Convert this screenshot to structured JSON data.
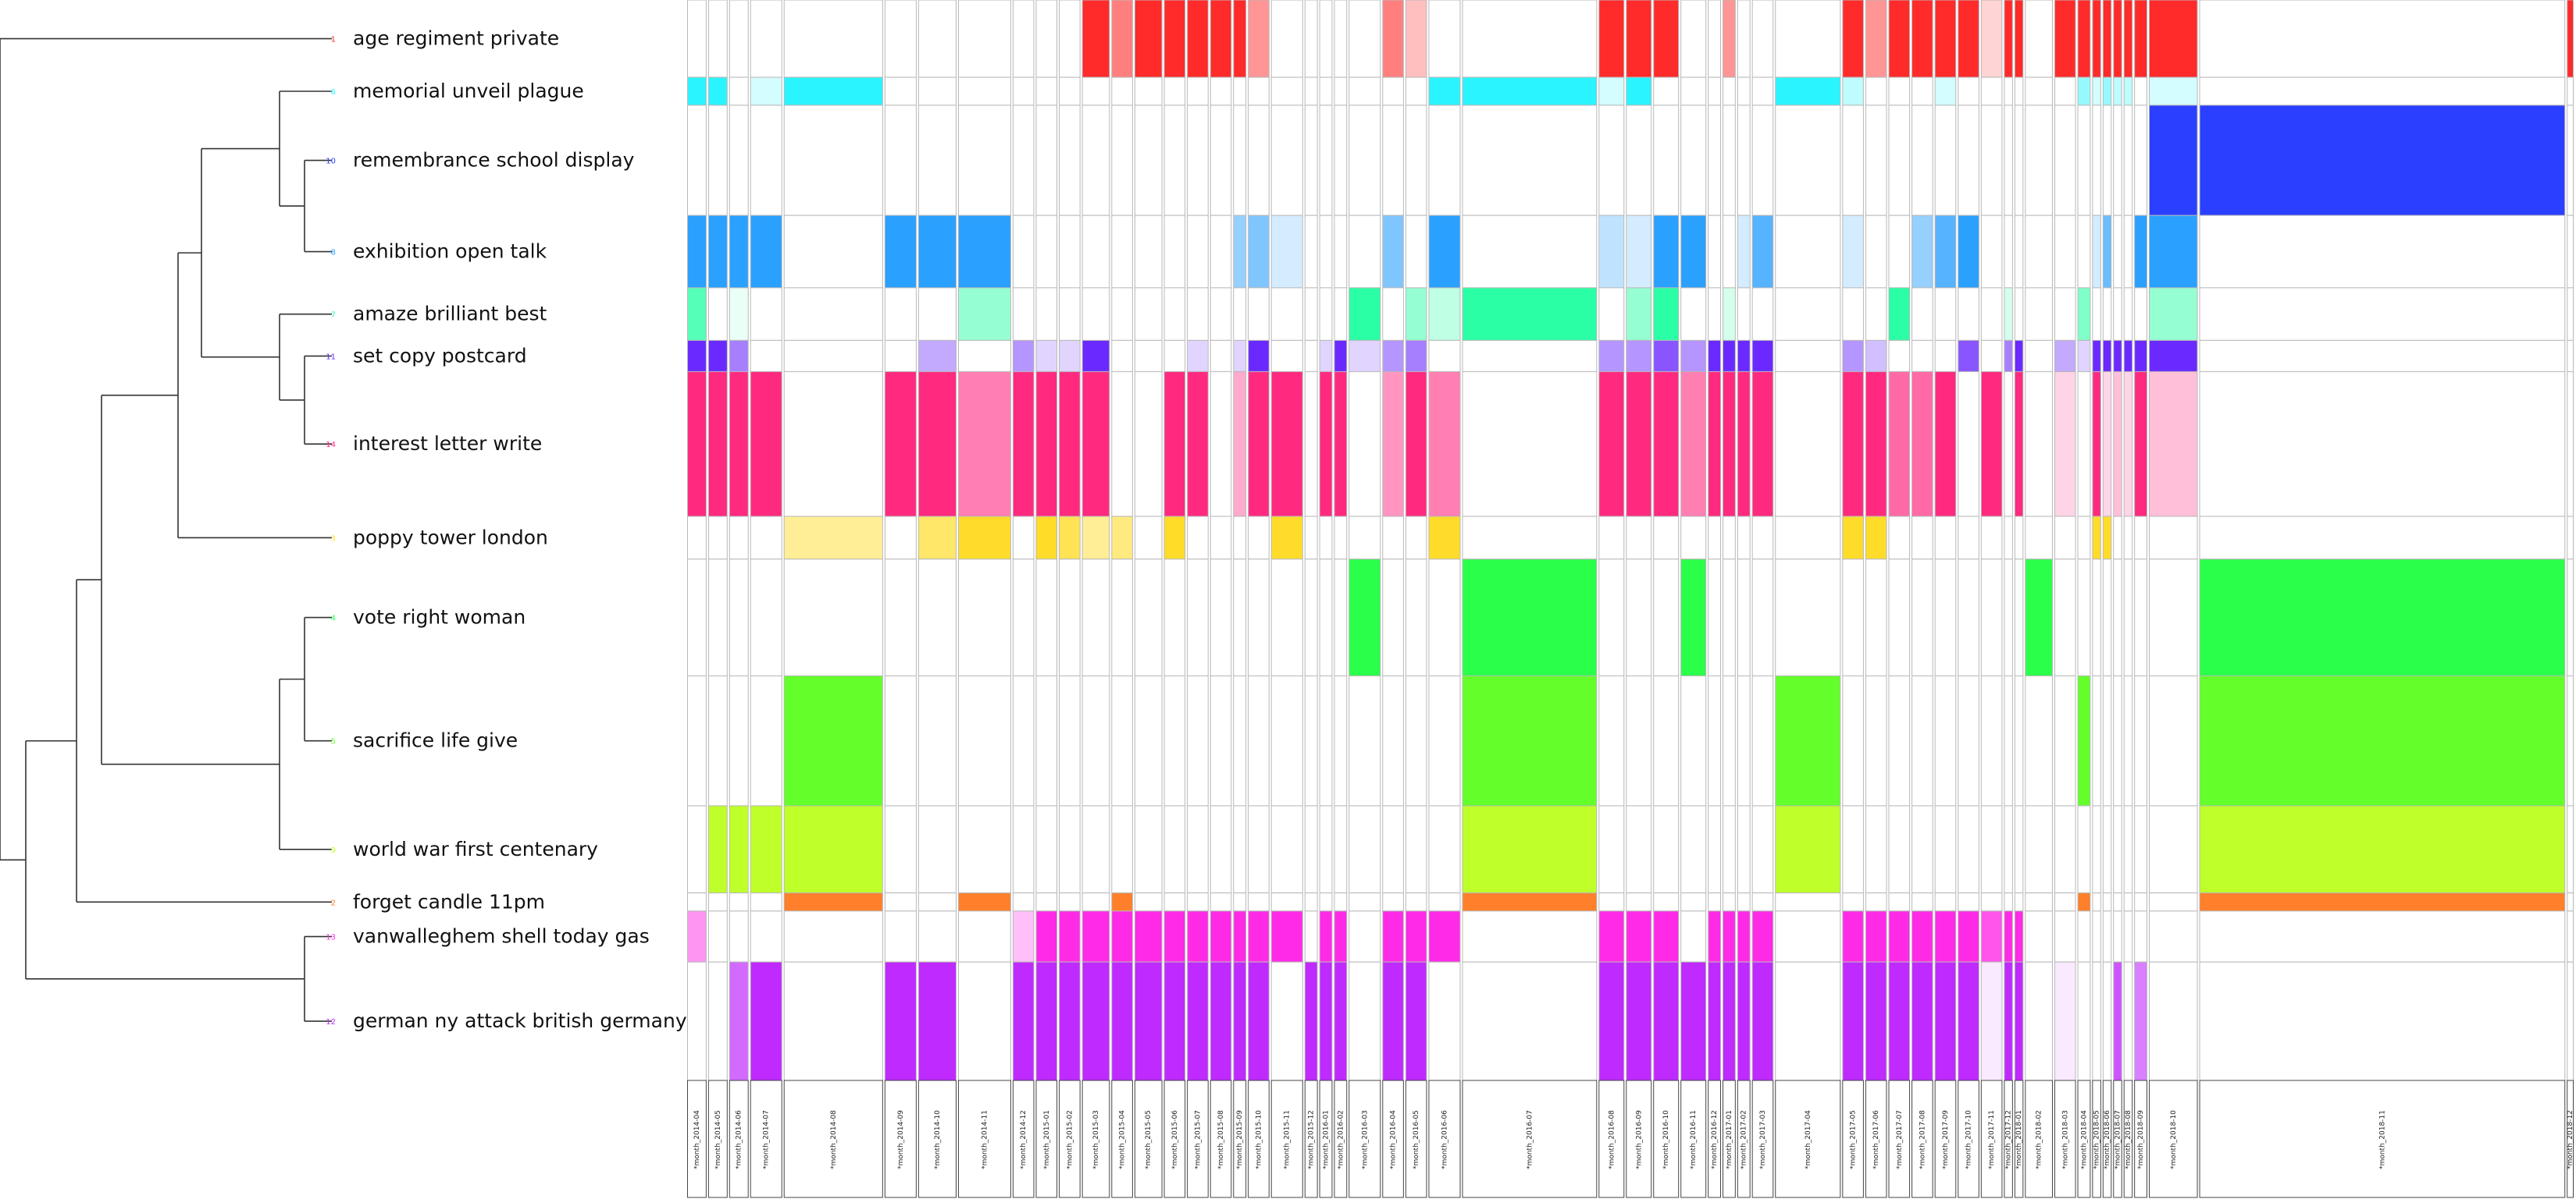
{
  "chart_data": {
    "type": "heatmap",
    "title": "",
    "rows": [
      {
        "id": "1",
        "label": "age regiment private",
        "color": "#ff2a2a"
      },
      {
        "id": "6",
        "label": "memorial unveil plague",
        "color": "#2af4ff"
      },
      {
        "id": "10",
        "label": "remembrance school display",
        "color": "#2a3fff"
      },
      {
        "id": "8",
        "label": "exhibition open talk",
        "color": "#2aa0ff"
      },
      {
        "id": "7",
        "label": "amaze brilliant best",
        "color": "#2affa5"
      },
      {
        "id": "11",
        "label": "set copy postcard",
        "color": "#6a2aff"
      },
      {
        "id": "14",
        "label": "interest letter write",
        "color": "#ff2a80"
      },
      {
        "id": "3",
        "label": "poppy tower london",
        "color": "#ffdc2a"
      },
      {
        "id": "4",
        "label": "vote right woman",
        "color": "#2aff4a"
      },
      {
        "id": "5",
        "label": "sacrifice life give",
        "color": "#64ff2a"
      },
      {
        "id": "9",
        "label": "world war first centenary",
        "color": "#bfff2a"
      },
      {
        "id": "2",
        "label": "forget candle 11pm",
        "color": "#ff7f2a"
      },
      {
        "id": "13",
        "label": "vanwalleghem shell today gas",
        "color": "#ff2ae6"
      },
      {
        "id": "12",
        "label": "german ny attack british germany",
        "color": "#bf2aff"
      }
    ],
    "columns": [
      "month_2014-04",
      "month_2014-05",
      "month_2014-06",
      "month_2014-07",
      "month_2014-08",
      "month_2014-09",
      "month_2014-10",
      "month_2014-11",
      "month_2014-12",
      "month_2015-01",
      "month_2015-02",
      "month_2015-03",
      "month_2015-04",
      "month_2015-05",
      "month_2015-06",
      "month_2015-07",
      "month_2015-08",
      "month_2015-09",
      "month_2015-10",
      "month_2015-11",
      "month_2015-12",
      "month_2016-01",
      "month_2016-02",
      "month_2016-03",
      "month_2016-04",
      "month_2016-05",
      "month_2016-06",
      "month_2016-07",
      "month_2016-08",
      "month_2016-09",
      "month_2016-10",
      "month_2016-11",
      "month_2016-12",
      "month_2017-01",
      "month_2017-02",
      "month_2017-03",
      "month_2017-04",
      "month_2017-05",
      "month_2017-06",
      "month_2017-07",
      "month_2017-08",
      "month_2017-09",
      "month_2017-10",
      "month_2017-11",
      "month_2017-12",
      "month_2018-01",
      "month_2018-02",
      "month_2018-03",
      "month_2018-04",
      "month_2018-05",
      "month_2018-06",
      "month_2018-07",
      "month_2018-08",
      "month_2018-09",
      "month_2018-10",
      "month_2018-11",
      "month_2018-12"
    ],
    "column_label_prefix": "*",
    "column_weights": [
      1,
      1,
      1,
      1.6,
      4.8,
      1.6,
      1.9,
      2.6,
      1.1,
      1.1,
      1.1,
      1.4,
      1.1,
      1.4,
      1.1,
      1.1,
      1.1,
      0.7,
      1.1,
      1.6,
      0.7,
      0.7,
      0.7,
      1.6,
      1.1,
      1.1,
      1.6,
      6.5,
      1.3,
      1.3,
      1.3,
      1.3,
      0.7,
      0.7,
      0.7,
      1.1,
      3.2,
      1.1,
      1.1,
      1.1,
      1.1,
      1.1,
      1.1,
      1.1,
      0.5,
      0.5,
      1.4,
      1.1,
      0.7,
      0.5,
      0.5,
      0.5,
      0.5,
      0.7,
      2.4,
      17.5,
      0.4
    ],
    "row_weights": [
      47,
      17,
      67,
      44,
      32,
      19,
      88,
      26,
      71,
      79,
      53,
      11,
      31,
      72
    ],
    "values": [
      [
        0,
        0,
        0,
        0,
        0,
        0,
        0,
        0,
        0,
        0,
        0,
        1,
        0.6,
        1,
        1,
        1,
        1,
        1,
        0.5,
        0,
        0,
        0,
        0,
        0,
        0.6,
        0.3,
        0,
        0,
        1,
        1,
        1,
        0,
        0,
        0.5,
        0,
        0,
        0,
        1,
        0.5,
        1,
        1,
        1,
        1,
        0.2,
        1,
        1,
        0,
        1,
        1,
        1,
        1,
        1,
        1,
        1,
        1,
        0,
        1
      ],
      [
        1,
        1,
        0,
        0.2,
        1,
        0,
        0,
        0,
        0,
        0,
        0,
        0,
        0,
        0,
        0,
        0,
        0,
        0,
        0,
        0,
        0,
        0,
        0,
        0,
        0,
        0,
        1,
        1,
        0.2,
        1,
        0,
        0,
        0,
        0,
        0,
        0,
        1,
        0.3,
        0,
        0,
        0,
        0.2,
        0,
        0,
        0,
        0,
        0,
        0,
        0.5,
        0.2,
        0.5,
        0.3,
        0.3,
        0,
        0.2,
        0,
        0
      ],
      [
        0,
        0,
        0,
        0,
        0,
        0,
        0,
        0,
        0,
        0,
        0,
        0,
        0,
        0,
        0,
        0,
        0,
        0,
        0,
        0,
        0,
        0,
        0,
        0,
        0,
        0,
        0,
        0,
        0,
        0,
        0,
        0,
        0,
        0,
        0,
        0,
        0,
        0,
        0,
        0,
        0,
        0,
        0,
        0,
        0,
        0,
        0,
        0,
        0,
        0,
        0,
        0,
        0,
        0,
        1,
        1,
        0
      ],
      [
        1,
        1,
        1,
        1,
        0,
        1,
        1,
        1,
        0,
        0,
        0,
        0,
        0,
        0,
        0,
        0,
        0,
        0.5,
        0.6,
        0.2,
        0,
        0,
        0,
        0,
        0.6,
        0,
        1,
        0,
        0.3,
        0.2,
        1,
        1,
        0,
        0,
        0.2,
        0.8,
        0,
        0.2,
        0,
        0,
        0.5,
        0.8,
        1,
        0,
        0,
        0,
        0,
        0,
        0,
        0.2,
        0.7,
        0,
        0,
        1,
        1,
        0,
        0
      ],
      [
        0.8,
        0,
        0.1,
        0,
        0,
        0,
        0,
        0.5,
        0,
        0,
        0,
        0,
        0,
        0,
        0,
        0,
        0,
        0,
        0,
        0,
        0,
        0,
        0,
        1,
        0,
        0.5,
        0.3,
        1,
        0,
        0.5,
        1,
        0,
        0,
        0.2,
        0,
        0,
        0,
        0,
        0,
        1,
        0,
        0,
        0,
        0,
        0.2,
        0,
        0,
        0,
        0.6,
        0,
        0,
        0,
        0,
        0,
        0.5,
        0,
        0
      ],
      [
        1,
        1,
        0.6,
        0,
        0,
        0,
        0.4,
        0,
        0.5,
        0.2,
        0.2,
        1,
        0,
        0,
        0,
        0.2,
        0,
        0.2,
        1,
        0,
        0,
        0.2,
        1,
        0.2,
        0.5,
        0.6,
        0,
        0,
        0.5,
        0.5,
        0.8,
        0.5,
        1,
        1,
        1,
        1,
        0,
        0.5,
        0.3,
        0,
        0,
        0,
        0.8,
        0,
        0.6,
        1,
        0,
        0.4,
        0.2,
        1,
        1,
        1,
        1,
        1,
        1,
        0,
        0
      ],
      [
        1,
        1,
        1,
        1,
        0,
        1,
        1,
        0.6,
        1,
        1,
        1,
        1,
        0,
        0,
        1,
        1,
        0,
        0.4,
        1,
        1,
        0,
        1,
        1,
        0,
        0.5,
        1,
        0.6,
        0,
        1,
        1,
        1,
        0.6,
        1,
        1,
        1,
        1,
        0,
        1,
        1,
        0.7,
        0.7,
        1,
        0,
        1,
        0,
        1,
        0,
        0.2,
        0,
        1,
        0.2,
        0.3,
        0.2,
        1,
        0.3,
        0,
        0
      ],
      [
        0,
        0,
        0,
        0,
        0.5,
        0,
        0.7,
        1,
        0,
        1,
        0.8,
        0.5,
        0.6,
        0,
        1,
        0,
        0,
        0,
        0,
        1,
        0,
        0,
        0,
        0,
        0,
        0,
        1,
        0,
        0,
        0,
        0,
        0,
        0,
        0,
        0,
        0,
        0,
        1,
        1,
        0,
        0,
        0,
        0,
        0,
        0,
        0,
        0,
        0,
        0,
        1,
        1,
        0,
        0,
        0,
        0,
        0,
        0
      ],
      [
        0,
        0,
        0,
        0,
        0,
        0,
        0,
        0,
        0,
        0,
        0,
        0,
        0,
        0,
        0,
        0,
        0,
        0,
        0,
        0,
        0,
        0,
        0,
        1,
        0,
        0,
        0,
        1,
        0,
        0,
        0,
        1,
        0,
        0,
        0,
        0,
        0,
        0,
        0,
        0,
        0,
        0,
        0,
        0,
        0,
        0,
        1,
        0,
        0,
        0,
        0,
        0,
        0,
        0,
        0,
        1,
        0
      ],
      [
        0,
        0,
        0,
        0,
        1,
        0,
        0,
        0,
        0,
        0,
        0,
        0,
        0,
        0,
        0,
        0,
        0,
        0,
        0,
        0,
        0,
        0,
        0,
        0,
        0,
        0,
        0,
        1,
        0,
        0,
        0,
        0,
        0,
        0,
        0,
        0,
        1,
        0,
        0,
        0,
        0,
        0,
        0,
        0,
        0,
        0,
        0,
        0,
        1,
        0,
        0,
        0,
        0,
        0,
        0,
        1,
        0
      ],
      [
        0,
        1,
        1,
        1,
        1,
        0,
        0,
        0,
        0,
        0,
        0,
        0,
        0,
        0,
        0,
        0,
        0,
        0,
        0,
        0,
        0,
        0,
        0,
        0,
        0,
        0,
        0,
        1,
        0,
        0,
        0,
        0,
        0,
        0,
        0,
        0,
        1,
        0,
        0,
        0,
        0,
        0,
        0,
        0,
        0,
        0,
        0,
        0,
        0,
        0,
        0,
        0,
        0,
        0,
        0,
        1,
        0
      ],
      [
        0,
        0,
        0,
        0,
        1,
        0,
        0,
        1,
        0,
        0,
        0,
        0,
        1,
        0,
        0,
        0,
        0,
        0,
        0,
        0,
        0,
        0,
        0,
        0,
        0,
        0,
        0,
        1,
        0,
        0,
        0,
        0,
        0,
        0,
        0,
        0,
        0,
        0,
        0,
        0,
        0,
        0,
        0,
        0,
        0,
        0,
        0,
        0,
        1,
        0,
        0,
        0,
        0,
        0,
        0,
        1,
        0
      ],
      [
        0.5,
        0,
        0,
        0,
        0,
        0,
        0,
        0,
        0.3,
        1,
        1,
        1,
        1,
        1,
        1,
        1,
        1,
        1,
        1,
        1,
        0,
        1,
        1,
        0,
        1,
        1,
        1,
        0,
        1,
        1,
        1,
        0,
        1,
        1,
        1,
        1,
        0,
        1,
        1,
        1,
        1,
        1,
        1,
        0.8,
        1,
        1,
        0,
        0,
        0,
        0,
        0,
        0,
        0,
        0,
        0,
        0,
        0
      ],
      [
        0,
        0,
        0.7,
        1,
        0,
        1,
        1,
        0,
        1,
        1,
        1,
        1,
        1,
        1,
        1,
        1,
        1,
        1,
        1,
        0,
        1,
        1,
        1,
        0,
        1,
        1,
        0,
        0,
        1,
        1,
        1,
        1,
        1,
        1,
        1,
        1,
        0,
        1,
        1,
        1,
        1,
        1,
        1,
        0.1,
        1,
        1,
        0,
        0.1,
        0,
        0,
        0,
        0.8,
        0,
        0.6,
        0,
        0,
        0
      ]
    ]
  }
}
